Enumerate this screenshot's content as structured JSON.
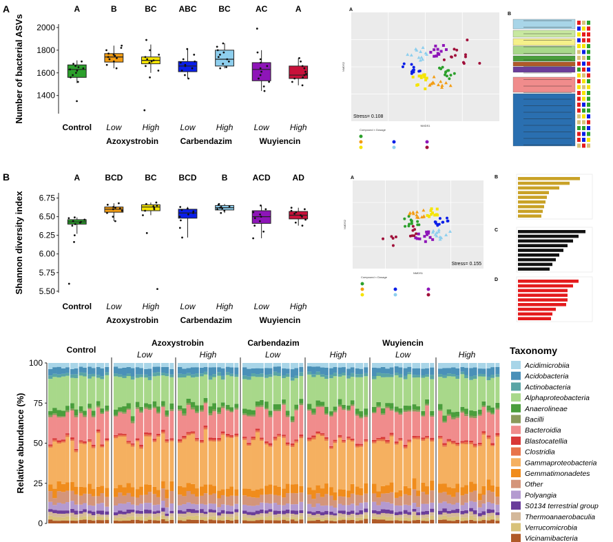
{
  "panel_A": {
    "label": "A",
    "chart_data": {
      "type": "box",
      "ylabel": "Number of bacterial ASVs",
      "yticks": [
        1400,
        1600,
        1800,
        2000
      ],
      "ylim": [
        1240,
        2030
      ],
      "groups": [
        {
          "name": "Control",
          "sub": "",
          "color": "#2ca02c",
          "letter": "A",
          "q1": 1560,
          "median": 1630,
          "q3": 1670,
          "wlo": 1510,
          "whi": 1710,
          "points": [
            1350,
            1520,
            1560,
            1580,
            1600,
            1620,
            1630,
            1640,
            1650,
            1660,
            1680,
            1700
          ]
        },
        {
          "name": "Low",
          "sub": "Azoxystrobin",
          "color": "#f39c12",
          "letter": "B",
          "q1": 1695,
          "median": 1740,
          "q3": 1770,
          "wlo": 1640,
          "whi": 1840,
          "points": [
            1640,
            1670,
            1700,
            1720,
            1730,
            1740,
            1750,
            1760,
            1770,
            1800,
            1820,
            1840
          ]
        },
        {
          "name": "High",
          "sub": "Azoxystrobin",
          "color": "#f5e400",
          "letter": "BC",
          "q1": 1680,
          "median": 1710,
          "q3": 1740,
          "wlo": 1600,
          "whi": 1850,
          "points": [
            1270,
            1560,
            1620,
            1660,
            1690,
            1700,
            1710,
            1720,
            1740,
            1760,
            1800,
            1890
          ]
        },
        {
          "name": "Low",
          "sub": "Carbendazim",
          "color": "#0a1ee8",
          "letter": "ABC",
          "q1": 1610,
          "median": 1660,
          "q3": 1700,
          "wlo": 1550,
          "whi": 1810,
          "points": [
            1550,
            1580,
            1620,
            1640,
            1660,
            1670,
            1690,
            1700,
            1720,
            1760,
            1810
          ]
        },
        {
          "name": "High",
          "sub": "Carbendazim",
          "color": "#8ecfee",
          "letter": "BC",
          "q1": 1660,
          "median": 1720,
          "q3": 1800,
          "wlo": 1640,
          "whi": 1860,
          "points": [
            1640,
            1650,
            1680,
            1700,
            1720,
            1740,
            1760,
            1780,
            1800,
            1830,
            1860
          ]
        },
        {
          "name": "Low",
          "sub": "Wuyiencin",
          "color": "#8e15b8",
          "letter": "AC",
          "q1": 1530,
          "median": 1630,
          "q3": 1690,
          "wlo": 1440,
          "whi": 1800,
          "points": [
            1440,
            1480,
            1520,
            1550,
            1580,
            1610,
            1640,
            1660,
            1690,
            1720,
            1780,
            1990
          ]
        },
        {
          "name": "High",
          "sub": "Wuyiencin",
          "color": "#c8103a",
          "letter": "A",
          "q1": 1550,
          "median": 1580,
          "q3": 1660,
          "wlo": 1490,
          "whi": 1730,
          "points": [
            1490,
            1520,
            1550,
            1560,
            1580,
            1590,
            1610,
            1640,
            1660,
            1700,
            1730
          ]
        }
      ],
      "treatments": [
        "Azoxystrobin",
        "Carbendazim",
        "Wuyiencin"
      ]
    },
    "nmds": {
      "label": "A",
      "stress": "Stress= 0.108",
      "xlabel": "NMDS1",
      "ylabel": "NMDS2",
      "legend_title": "Compound × Dosage"
    },
    "tree": {
      "label": "B"
    }
  },
  "panel_B": {
    "label": "B",
    "chart_data": {
      "type": "box",
      "ylabel": "Shannon diversity index",
      "yticks": [
        5.5,
        5.75,
        6.0,
        6.25,
        6.5,
        6.75
      ],
      "ytick_labels": [
        "5.50",
        "5.75",
        "6.00",
        "6.25",
        "6.50",
        "6.75"
      ],
      "ylim": [
        5.48,
        6.82
      ],
      "groups": [
        {
          "name": "Control",
          "sub": "",
          "color": "#2ca02c",
          "letter": "A",
          "q1": 6.4,
          "median": 6.43,
          "q3": 6.46,
          "wlo": 6.27,
          "whi": 6.49,
          "points": [
            5.6,
            6.16,
            6.25,
            6.38,
            6.4,
            6.42,
            6.43,
            6.44,
            6.46,
            6.48,
            6.49
          ]
        },
        {
          "name": "Low",
          "sub": "Azoxystrobin",
          "color": "#f39c12",
          "letter": "BCD",
          "q1": 6.56,
          "median": 6.6,
          "q3": 6.63,
          "wlo": 6.44,
          "whi": 6.68,
          "points": [
            6.44,
            6.5,
            6.55,
            6.58,
            6.6,
            6.61,
            6.62,
            6.63,
            6.66,
            6.68
          ]
        },
        {
          "name": "High",
          "sub": "Azoxystrobin",
          "color": "#f5e400",
          "letter": "BC",
          "q1": 6.58,
          "median": 6.63,
          "q3": 6.66,
          "wlo": 6.52,
          "whi": 6.69,
          "points": [
            5.53,
            6.28,
            6.52,
            6.58,
            6.6,
            6.62,
            6.64,
            6.65,
            6.67,
            6.69
          ]
        },
        {
          "name": "Low",
          "sub": "Carbendazim",
          "color": "#0a1ee8",
          "letter": "BCD",
          "q1": 6.48,
          "median": 6.55,
          "q3": 6.6,
          "wlo": 6.22,
          "whi": 6.63,
          "points": [
            6.22,
            6.35,
            6.45,
            6.5,
            6.53,
            6.55,
            6.57,
            6.59,
            6.61,
            6.63
          ]
        },
        {
          "name": "High",
          "sub": "Carbendazim",
          "color": "#8ecfee",
          "letter": "B",
          "q1": 6.59,
          "median": 6.62,
          "q3": 6.65,
          "wlo": 6.55,
          "whi": 6.67,
          "points": [
            6.55,
            6.58,
            6.6,
            6.61,
            6.62,
            6.63,
            6.64,
            6.66,
            6.67
          ]
        },
        {
          "name": "Low",
          "sub": "Wuyiencin",
          "color": "#8e15b8",
          "letter": "ACD",
          "q1": 6.41,
          "median": 6.5,
          "q3": 6.58,
          "wlo": 6.21,
          "whi": 6.65,
          "points": [
            6.21,
            6.3,
            6.38,
            6.44,
            6.48,
            6.5,
            6.53,
            6.56,
            6.6,
            6.65
          ]
        },
        {
          "name": "High",
          "sub": "Wuyiencin",
          "color": "#c8103a",
          "letter": "AD",
          "q1": 6.47,
          "median": 6.52,
          "q3": 6.57,
          "wlo": 6.38,
          "whi": 6.62,
          "points": [
            6.38,
            6.42,
            6.46,
            6.5,
            6.52,
            6.54,
            6.56,
            6.58,
            6.6,
            6.62
          ]
        }
      ],
      "treatments": [
        "Azoxystrobin",
        "Carbendazim",
        "Wuyiencin"
      ]
    },
    "nmds": {
      "label": "A",
      "stress": "Stress= 0.155",
      "xlabel": "NMDS1",
      "ylabel": "NMDS2",
      "legend_title": "Compound × Dosage"
    },
    "bars": [
      {
        "label": "B",
        "color": "#c9a227"
      },
      {
        "label": "C",
        "color": "#111111"
      },
      {
        "label": "D",
        "color": "#e41a1c"
      }
    ]
  },
  "panel_C": {
    "chart_data": {
      "type": "stacked-bar",
      "ylabel": "Relative abundance (%)",
      "yticks": [
        0,
        25,
        50,
        75,
        100
      ],
      "ylim": [
        0,
        100
      ],
      "group_headers": [
        "Control",
        "Azoxystrobin",
        "Carbendazim",
        "Wuyiencin"
      ],
      "dosages": [
        "Low",
        "High",
        "Low",
        "High",
        "Low",
        "High"
      ],
      "legend_title": "Taxonomy",
      "taxa": [
        "Acidimicrobiia",
        "Acidobacteria",
        "Actinobacteria",
        "Alphaproteobacteria",
        "Anaerolineae",
        "Bacilli",
        "Bacteroidia",
        "Blastocatellia",
        "Clostridia",
        "Gammaproteobacteria",
        "Gemmatimonadetes",
        "Other",
        "Polyangia",
        "S0134 terrestrial group",
        "Thermoanaerobaculia",
        "Verrucomicrobia",
        "Vicinamibacteria"
      ],
      "colors": [
        "#a8d5e8",
        "#4a90b8",
        "#5aa5a5",
        "#a8d88a",
        "#4a9e3c",
        "#8a9a5a",
        "#f08c8c",
        "#d93838",
        "#e8734a",
        "#f5b060",
        "#f08c1c",
        "#d4957a",
        "#b49ad0",
        "#6a3d9a",
        "#d4b89a",
        "#d8c27a",
        "#b05a28"
      ],
      "mean_composition": [
        3,
        4,
        2,
        18,
        3,
        1,
        16,
        1,
        1,
        28,
        5,
        6,
        4,
        2,
        2,
        2,
        2
      ]
    }
  }
}
